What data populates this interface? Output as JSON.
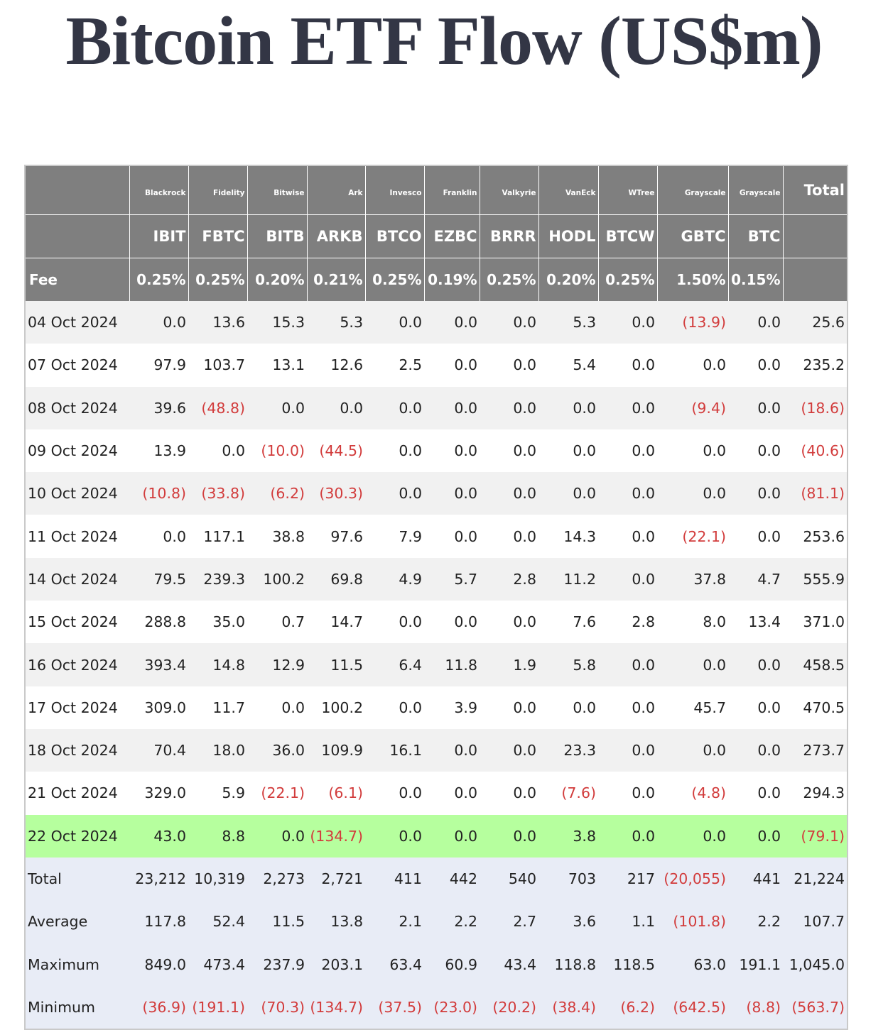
{
  "title": "Bitcoin ETF Flow (US$m)",
  "colors": {
    "header_bg": "#7f7f7f",
    "row_alt": "#f1f1f1",
    "highlight_row": "#b6ff9e",
    "stats_bg": "#e8ecf6",
    "negative": "#d23c3c"
  },
  "header": {
    "issuers": [
      "Blackrock",
      "Fidelity",
      "Bitwise",
      "Ark",
      "Invesco",
      "Franklin",
      "Valkyrie",
      "VanEck",
      "WTree",
      "Grayscale",
      "Grayscale"
    ],
    "total_label": "Total",
    "tickers": [
      "IBIT",
      "FBTC",
      "BITB",
      "ARKB",
      "BTCO",
      "EZBC",
      "BRRR",
      "HODL",
      "BTCW",
      "GBTC",
      "BTC"
    ],
    "fee_label": "Fee",
    "fees": [
      "0.25%",
      "0.25%",
      "0.20%",
      "0.21%",
      "0.25%",
      "0.19%",
      "0.25%",
      "0.20%",
      "0.25%",
      "1.50%",
      "0.15%"
    ]
  },
  "rows": [
    {
      "date": "04 Oct 2024",
      "values": [
        "0.0",
        "13.6",
        "15.3",
        "5.3",
        "0.0",
        "0.0",
        "0.0",
        "5.3",
        "0.0",
        "(13.9)",
        "0.0",
        "25.6"
      ]
    },
    {
      "date": "07 Oct 2024",
      "values": [
        "97.9",
        "103.7",
        "13.1",
        "12.6",
        "2.5",
        "0.0",
        "0.0",
        "5.4",
        "0.0",
        "0.0",
        "0.0",
        "235.2"
      ]
    },
    {
      "date": "08 Oct 2024",
      "values": [
        "39.6",
        "(48.8)",
        "0.0",
        "0.0",
        "0.0",
        "0.0",
        "0.0",
        "0.0",
        "0.0",
        "(9.4)",
        "0.0",
        "(18.6)"
      ]
    },
    {
      "date": "09 Oct 2024",
      "values": [
        "13.9",
        "0.0",
        "(10.0)",
        "(44.5)",
        "0.0",
        "0.0",
        "0.0",
        "0.0",
        "0.0",
        "0.0",
        "0.0",
        "(40.6)"
      ]
    },
    {
      "date": "10 Oct 2024",
      "values": [
        "(10.8)",
        "(33.8)",
        "(6.2)",
        "(30.3)",
        "0.0",
        "0.0",
        "0.0",
        "0.0",
        "0.0",
        "0.0",
        "0.0",
        "(81.1)"
      ]
    },
    {
      "date": "11 Oct 2024",
      "values": [
        "0.0",
        "117.1",
        "38.8",
        "97.6",
        "7.9",
        "0.0",
        "0.0",
        "14.3",
        "0.0",
        "(22.1)",
        "0.0",
        "253.6"
      ]
    },
    {
      "date": "14 Oct 2024",
      "values": [
        "79.5",
        "239.3",
        "100.2",
        "69.8",
        "4.9",
        "5.7",
        "2.8",
        "11.2",
        "0.0",
        "37.8",
        "4.7",
        "555.9"
      ]
    },
    {
      "date": "15 Oct 2024",
      "values": [
        "288.8",
        "35.0",
        "0.7",
        "14.7",
        "0.0",
        "0.0",
        "0.0",
        "7.6",
        "2.8",
        "8.0",
        "13.4",
        "371.0"
      ]
    },
    {
      "date": "16 Oct 2024",
      "values": [
        "393.4",
        "14.8",
        "12.9",
        "11.5",
        "6.4",
        "11.8",
        "1.9",
        "5.8",
        "0.0",
        "0.0",
        "0.0",
        "458.5"
      ]
    },
    {
      "date": "17 Oct 2024",
      "values": [
        "309.0",
        "11.7",
        "0.0",
        "100.2",
        "0.0",
        "3.9",
        "0.0",
        "0.0",
        "0.0",
        "45.7",
        "0.0",
        "470.5"
      ]
    },
    {
      "date": "18 Oct 2024",
      "values": [
        "70.4",
        "18.0",
        "36.0",
        "109.9",
        "16.1",
        "0.0",
        "0.0",
        "23.3",
        "0.0",
        "0.0",
        "0.0",
        "273.7"
      ]
    },
    {
      "date": "21 Oct 2024",
      "values": [
        "329.0",
        "5.9",
        "(22.1)",
        "(6.1)",
        "0.0",
        "0.0",
        "0.0",
        "(7.6)",
        "0.0",
        "(4.8)",
        "0.0",
        "294.3"
      ]
    },
    {
      "date": "22 Oct 2024",
      "highlight": true,
      "values": [
        "43.0",
        "8.8",
        "0.0",
        "(134.7)",
        "0.0",
        "0.0",
        "0.0",
        "3.8",
        "0.0",
        "0.0",
        "0.0",
        "(79.1)"
      ]
    }
  ],
  "stats": [
    {
      "label": "Total",
      "values": [
        "23,212",
        "10,319",
        "2,273",
        "2,721",
        "411",
        "442",
        "540",
        "703",
        "217",
        "(20,055)",
        "441",
        "21,224"
      ]
    },
    {
      "label": "Average",
      "values": [
        "117.8",
        "52.4",
        "11.5",
        "13.8",
        "2.1",
        "2.2",
        "2.7",
        "3.6",
        "1.1",
        "(101.8)",
        "2.2",
        "107.7"
      ]
    },
    {
      "label": "Maximum",
      "values": [
        "849.0",
        "473.4",
        "237.9",
        "203.1",
        "63.4",
        "60.9",
        "43.4",
        "118.8",
        "118.5",
        "63.0",
        "191.1",
        "1,045.0"
      ]
    },
    {
      "label": "Minimum",
      "values": [
        "(36.9)",
        "(191.1)",
        "(70.3)",
        "(134.7)",
        "(37.5)",
        "(23.0)",
        "(20.2)",
        "(38.4)",
        "(6.2)",
        "(642.5)",
        "(8.8)",
        "(563.7)"
      ]
    }
  ]
}
